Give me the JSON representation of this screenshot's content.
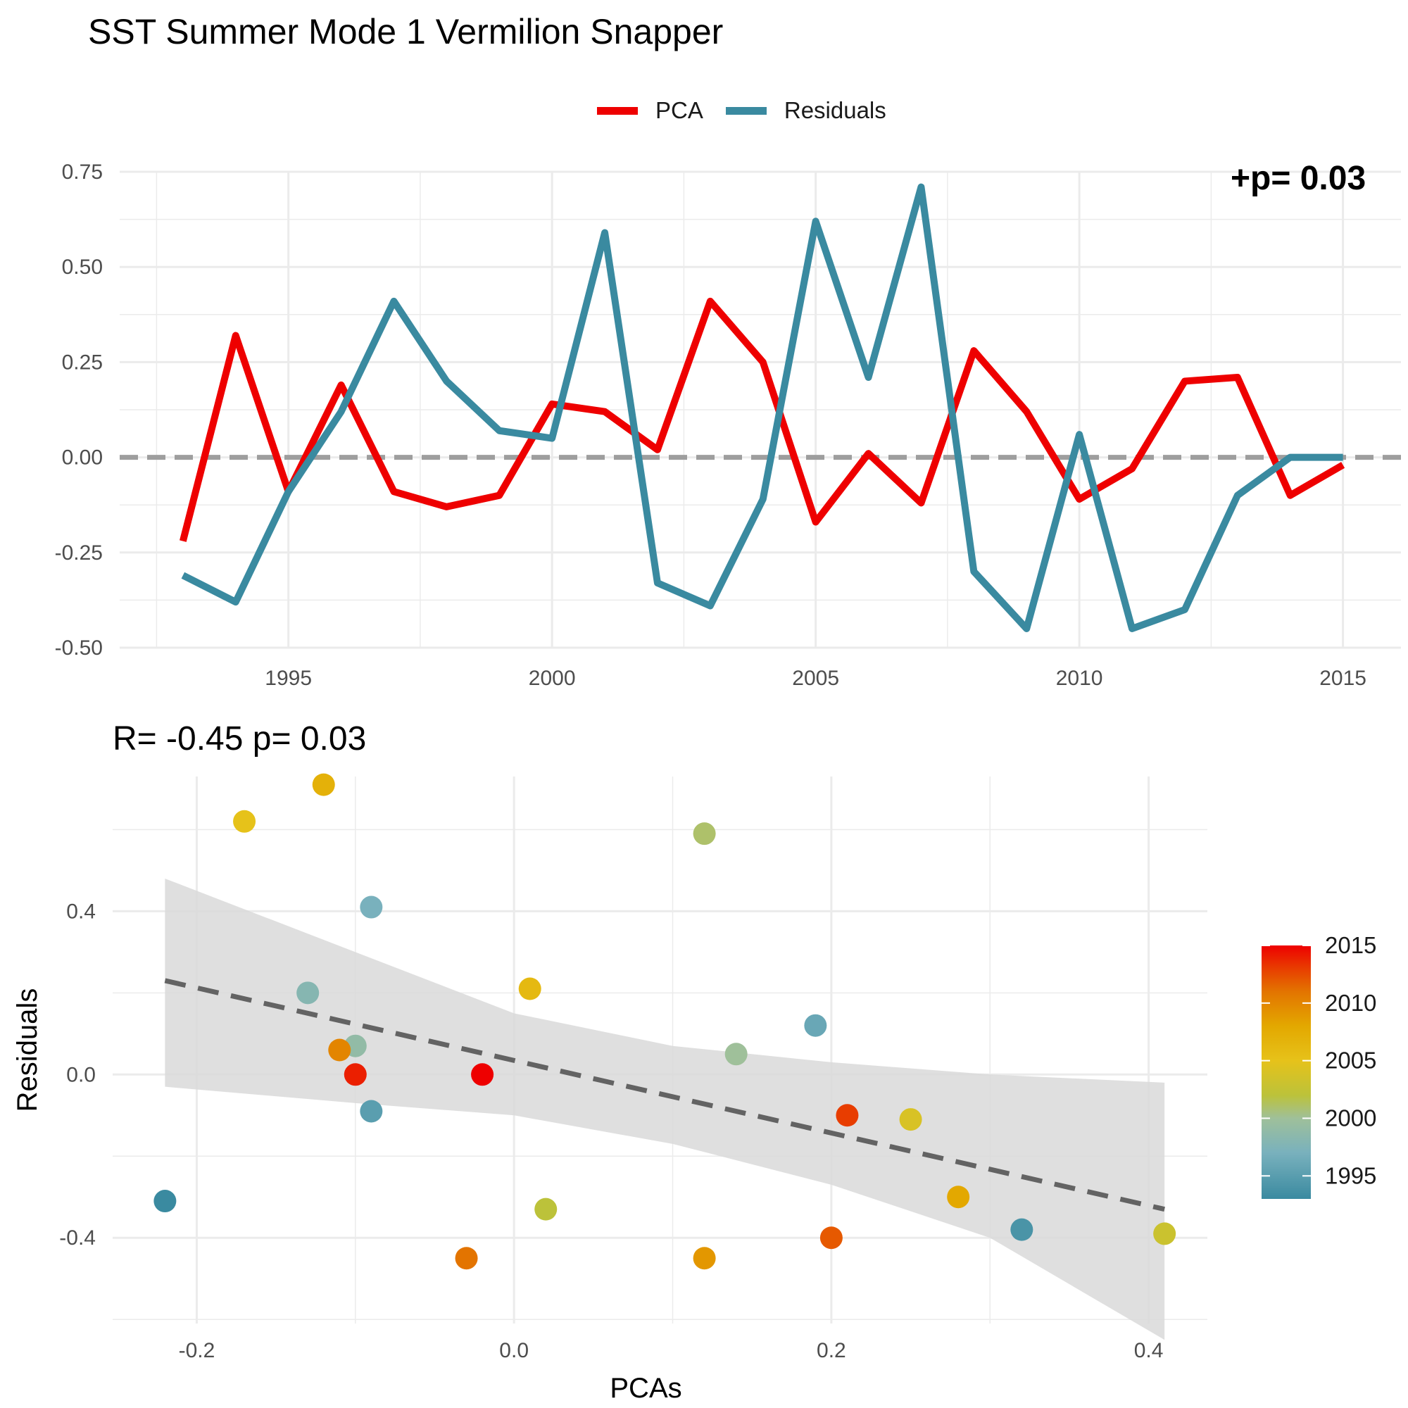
{
  "title": "SST Summer Mode 1 Vermilion Snapper",
  "colors": {
    "pca": "#ee0000",
    "residuals": "#3a8aa0",
    "zero_line": "#9e9e9e",
    "grid": "#ebebeb",
    "fit_line": "#636363",
    "ribbon": "#d9d9d9"
  },
  "top_legend": [
    {
      "label": "PCA",
      "color": "#ee0000"
    },
    {
      "label": "Residuals",
      "color": "#3a8aa0"
    }
  ],
  "top_corner_text": "+p= 0.03",
  "stats_label": "R= -0.45  p= 0.03",
  "chart_data": [
    {
      "type": "line",
      "x": [
        1993,
        1994,
        1995,
        1996,
        1997,
        1998,
        1999,
        2000,
        2001,
        2002,
        2003,
        2004,
        2005,
        2006,
        2007,
        2008,
        2009,
        2010,
        2011,
        2012,
        2013,
        2014,
        2015
      ],
      "series": [
        {
          "name": "PCA",
          "values": [
            -0.22,
            0.32,
            -0.09,
            0.19,
            -0.09,
            -0.13,
            -0.1,
            0.14,
            0.12,
            0.02,
            0.41,
            0.25,
            -0.17,
            0.01,
            -0.12,
            0.28,
            0.12,
            -0.11,
            -0.03,
            0.2,
            0.21,
            -0.1,
            -0.02
          ]
        },
        {
          "name": "Residuals",
          "values": [
            -0.31,
            -0.38,
            -0.09,
            0.12,
            0.41,
            0.2,
            0.07,
            0.05,
            0.59,
            -0.33,
            -0.39,
            -0.11,
            0.62,
            0.21,
            0.71,
            -0.3,
            -0.45,
            0.06,
            -0.45,
            -0.4,
            -0.1,
            0.0,
            0.0
          ]
        }
      ],
      "xticks": [
        1995,
        2000,
        2005,
        2010,
        2015
      ],
      "yticks": [
        "0.75",
        "0.50",
        "0.25",
        "0.00",
        "-0.25",
        "-0.50"
      ],
      "xlim": [
        1991.8,
        2016.1
      ],
      "ylim": [
        -0.5,
        0.75
      ],
      "reference_line": 0,
      "grid": true,
      "legend": "top"
    },
    {
      "type": "scatter",
      "xlabel": "PCAs",
      "ylabel": "Residuals",
      "xticks": [
        "-0.2",
        "0.0",
        "0.2",
        "0.4"
      ],
      "yticks": [
        "0.4",
        "0.0",
        "-0.4"
      ],
      "xlim": [
        -0.253,
        0.437
      ],
      "ylim": [
        -0.61,
        0.73
      ],
      "points": [
        {
          "x": -0.22,
          "y": -0.31,
          "year": 1993
        },
        {
          "x": 0.32,
          "y": -0.38,
          "year": 1994
        },
        {
          "x": -0.09,
          "y": -0.09,
          "year": 1995
        },
        {
          "x": 0.19,
          "y": 0.12,
          "year": 1996
        },
        {
          "x": -0.09,
          "y": 0.41,
          "year": 1997
        },
        {
          "x": -0.13,
          "y": 0.2,
          "year": 1998
        },
        {
          "x": -0.1,
          "y": 0.07,
          "year": 1999
        },
        {
          "x": 0.14,
          "y": 0.05,
          "year": 2000
        },
        {
          "x": 0.12,
          "y": 0.59,
          "year": 2001
        },
        {
          "x": 0.02,
          "y": -0.33,
          "year": 2002
        },
        {
          "x": 0.41,
          "y": -0.39,
          "year": 2003
        },
        {
          "x": 0.25,
          "y": -0.11,
          "year": 2004
        },
        {
          "x": -0.17,
          "y": 0.62,
          "year": 2005
        },
        {
          "x": 0.01,
          "y": 0.21,
          "year": 2006
        },
        {
          "x": -0.12,
          "y": 0.71,
          "year": 2007
        },
        {
          "x": 0.28,
          "y": -0.3,
          "year": 2008
        },
        {
          "x": 0.12,
          "y": -0.45,
          "year": 2009
        },
        {
          "x": -0.11,
          "y": 0.06,
          "year": 2010
        },
        {
          "x": -0.03,
          "y": -0.45,
          "year": 2011
        },
        {
          "x": 0.2,
          "y": -0.4,
          "year": 2012
        },
        {
          "x": 0.21,
          "y": -0.1,
          "year": 2013
        },
        {
          "x": -0.1,
          "y": 0.0,
          "year": 2014
        },
        {
          "x": -0.02,
          "y": 0.0,
          "year": 2015
        }
      ],
      "fit_line": {
        "x": [
          -0.22,
          0.41
        ],
        "y": [
          0.23,
          -0.33
        ]
      },
      "ribbon": {
        "x": [
          -0.22,
          -0.1,
          0.0,
          0.1,
          0.2,
          0.3,
          0.41
        ],
        "lower": [
          -0.03,
          -0.07,
          -0.1,
          -0.17,
          -0.27,
          -0.4,
          -0.65
        ],
        "upper": [
          0.48,
          0.3,
          0.15,
          0.07,
          0.03,
          0.0,
          -0.02
        ]
      },
      "colorbar": {
        "title": "",
        "ticks": [
          1995,
          2000,
          2005,
          2010,
          2015
        ],
        "range": [
          1993,
          2015
        ],
        "stops": [
          {
            "year": 1993,
            "color": "#3a8aa0"
          },
          {
            "year": 1997,
            "color": "#79b1bd"
          },
          {
            "year": 2000,
            "color": "#9fc09a"
          },
          {
            "year": 2002,
            "color": "#bcc23a"
          },
          {
            "year": 2005,
            "color": "#e6c21a"
          },
          {
            "year": 2008,
            "color": "#e3a800"
          },
          {
            "year": 2011,
            "color": "#e37400"
          },
          {
            "year": 2013,
            "color": "#e83d00"
          },
          {
            "year": 2015,
            "color": "#ee0000"
          }
        ]
      }
    }
  ]
}
